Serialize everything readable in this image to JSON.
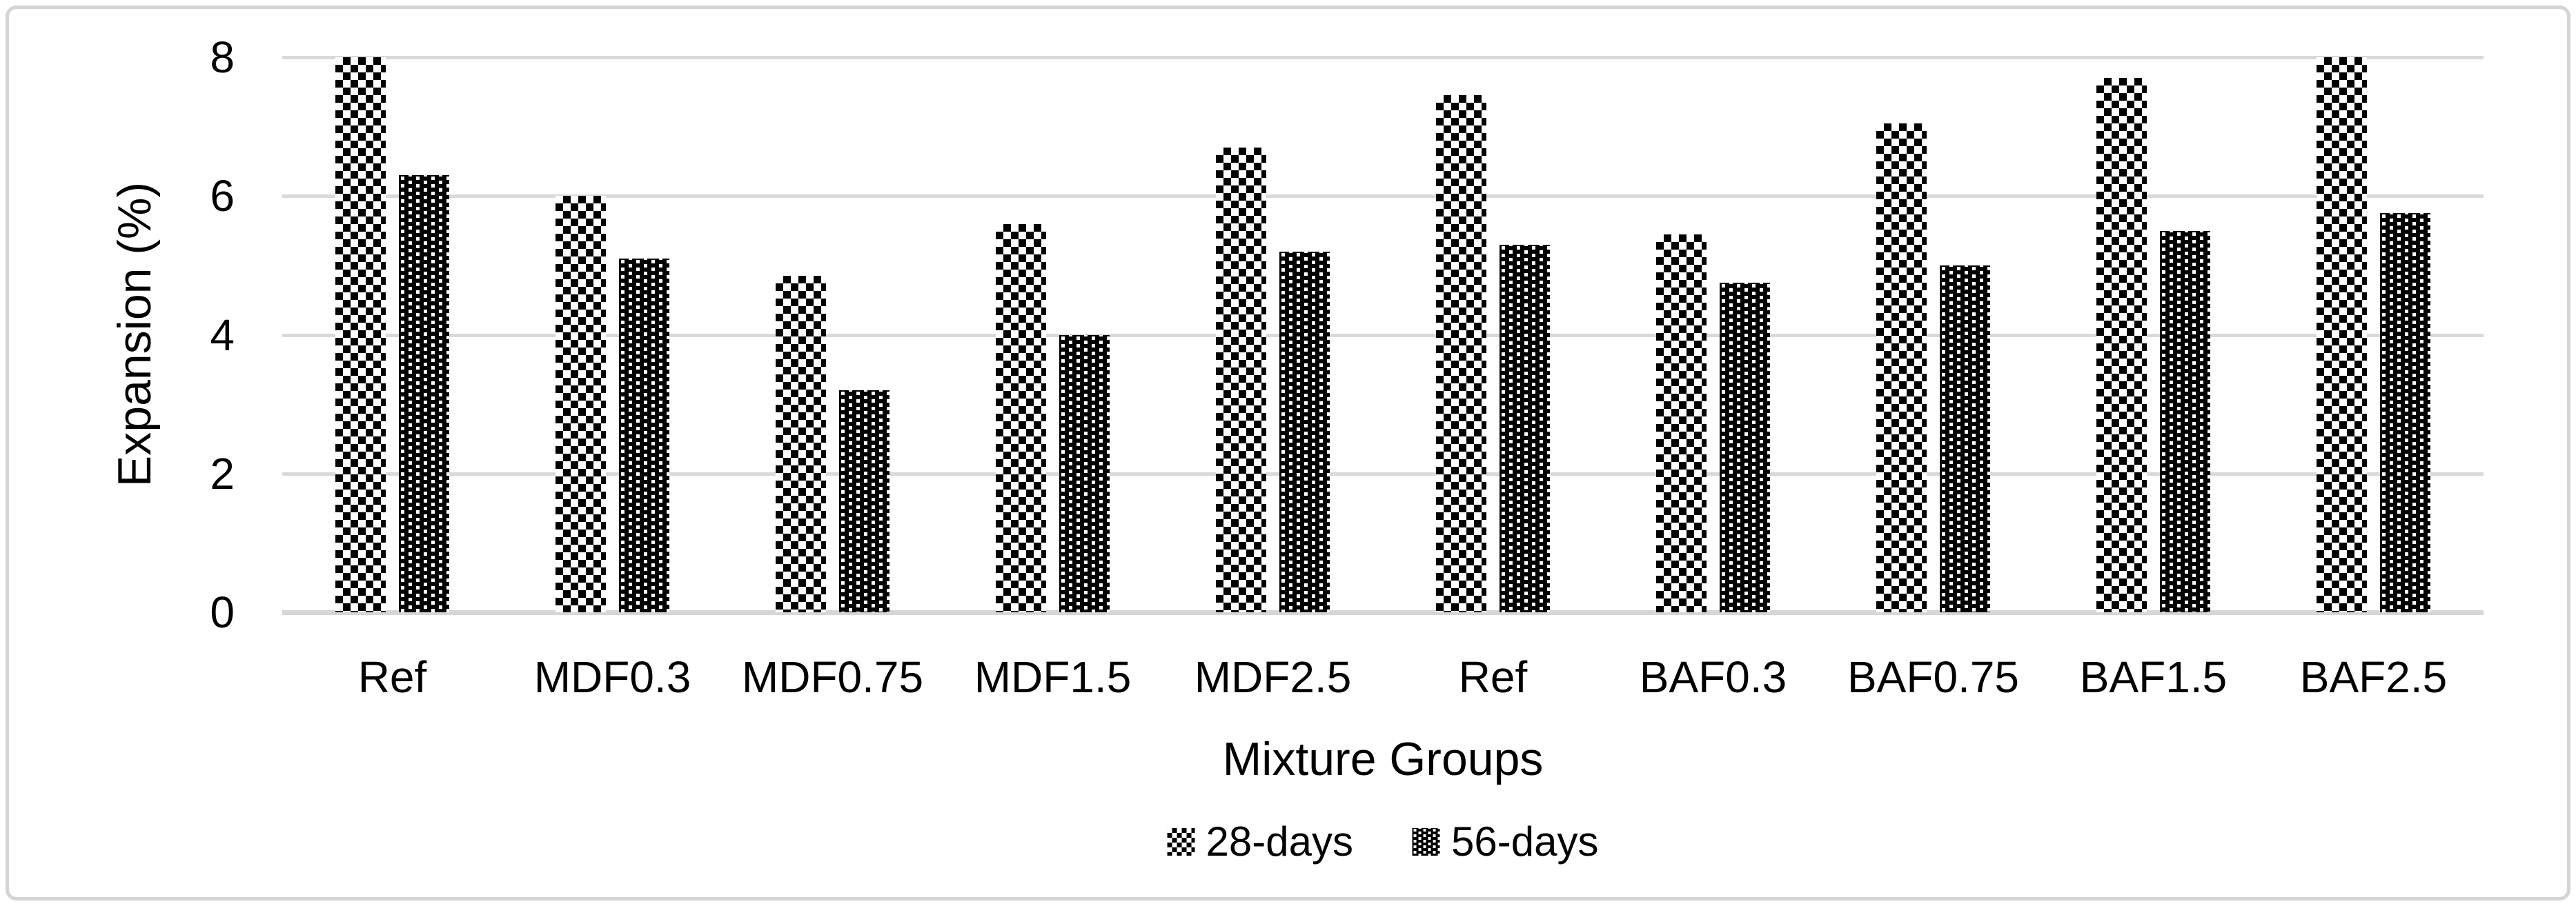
{
  "chart_data": {
    "type": "bar",
    "title": "",
    "xlabel": "Mixture Groups",
    "ylabel": "Expansion (%)",
    "categories": [
      "Ref",
      "MDF0.3",
      "MDF0.75",
      "MDF1.5",
      "MDF2.5",
      "Ref",
      "BAF0.3",
      "BAF0.75",
      "BAF1.5",
      "BAF2.5"
    ],
    "series": [
      {
        "name": "28-days",
        "pattern": "checkerboard",
        "values": [
          8.0,
          6.0,
          4.85,
          5.6,
          6.7,
          7.45,
          5.45,
          7.05,
          7.7,
          8.0
        ]
      },
      {
        "name": "56-days",
        "pattern": "dotted-grid",
        "values": [
          6.3,
          5.1,
          3.2,
          4.0,
          5.2,
          5.3,
          4.75,
          5.0,
          5.5,
          5.75
        ]
      }
    ],
    "ylim": [
      0,
      8
    ],
    "yticks": [
      0,
      2,
      4,
      6,
      8
    ],
    "grid": "horizontal",
    "legend_position": "bottom",
    "colors": {
      "bar": "#000000",
      "background": "#ffffff",
      "gridline": "#d9d9d9",
      "frame_border": "#d4d4d4",
      "text": "#000000"
    }
  }
}
